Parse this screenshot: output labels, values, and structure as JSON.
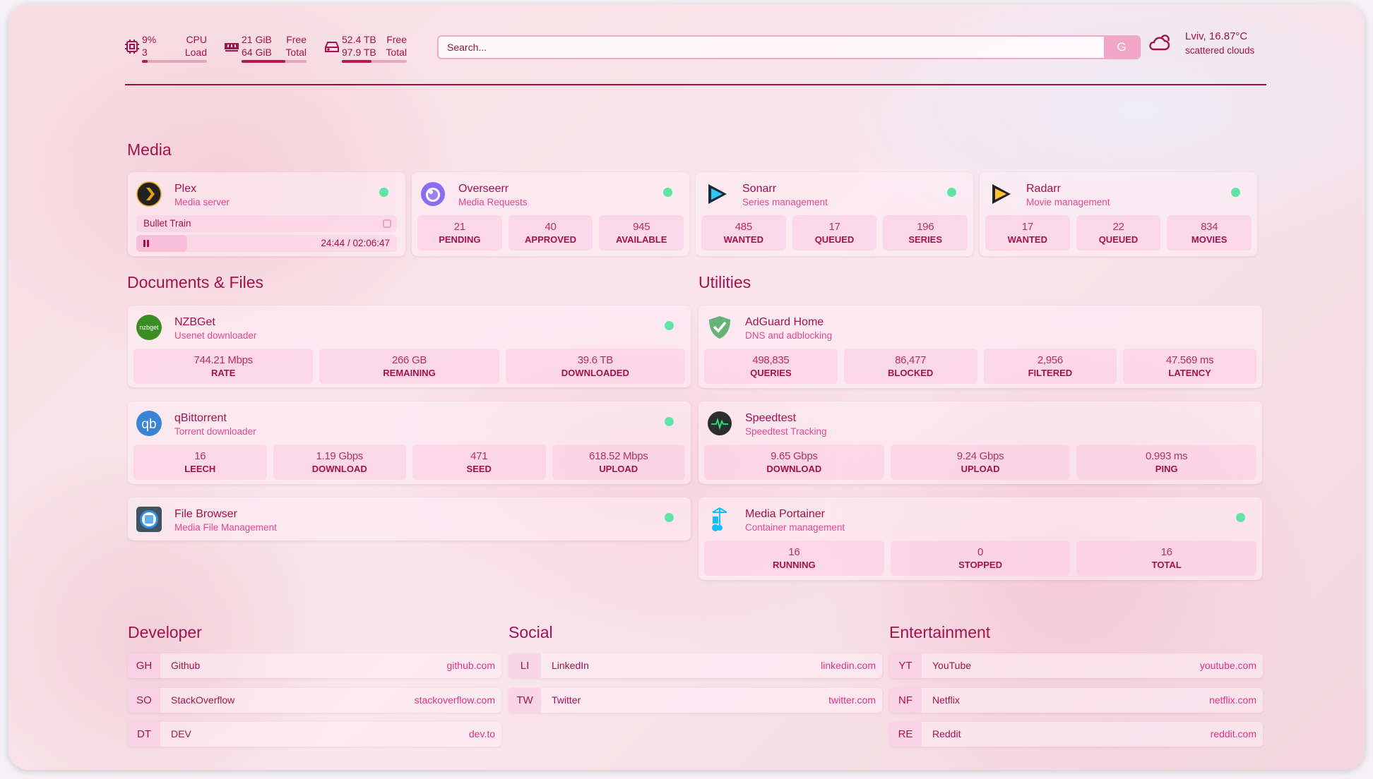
{
  "top": {
    "cpu": {
      "icon": "cpu-icon",
      "value": "9%",
      "sub": "3",
      "label1": "CPU",
      "label2": "Load",
      "fill": 0.09
    },
    "memory": {
      "icon": "memory-icon",
      "value": "21 GiB",
      "sub": "64 GiB",
      "label1": "Free",
      "label2": "Total",
      "fill": 0.67
    },
    "disk": {
      "icon": "disk-icon",
      "value": "52.4 TB",
      "sub": "97.9 TB",
      "label1": "Free",
      "label2": "Total",
      "fill": 0.46
    },
    "search": {
      "placeholder": "Search...",
      "button": "G"
    },
    "weather": {
      "icon": "cloud-icon",
      "title": "Lviv, 16.87°C",
      "desc": "scattered clouds"
    }
  },
  "colors": {
    "accent": "#a3124a",
    "subtitle": "#e54790",
    "status_ok": "#62e3a6",
    "divider": "#a0103c"
  },
  "sections": {
    "media": {
      "title": "Media",
      "cards": [
        {
          "name": "Plex",
          "desc": "Media server",
          "icon": "plex-icon",
          "status": "online",
          "now_playing": {
            "title": "Bullet Train",
            "time": "24:44 / 02:06:47",
            "progress": 0.195
          }
        },
        {
          "name": "Overseerr",
          "desc": "Media Requests",
          "icon": "overseerr-icon",
          "status": "online",
          "stats": [
            {
              "value": "21",
              "label": "PENDING"
            },
            {
              "value": "40",
              "label": "APPROVED"
            },
            {
              "value": "945",
              "label": "AVAILABLE"
            }
          ]
        },
        {
          "name": "Sonarr",
          "desc": "Series management",
          "icon": "sonarr-icon",
          "status": "online",
          "stats": [
            {
              "value": "485",
              "label": "WANTED"
            },
            {
              "value": "17",
              "label": "QUEUED"
            },
            {
              "value": "196",
              "label": "SERIES"
            }
          ]
        },
        {
          "name": "Radarr",
          "desc": "Movie management",
          "icon": "radarr-icon",
          "status": "online",
          "stats": [
            {
              "value": "17",
              "label": "WANTED"
            },
            {
              "value": "22",
              "label": "QUEUED"
            },
            {
              "value": "834",
              "label": "MOVIES"
            }
          ]
        }
      ]
    },
    "docs": {
      "title": "Documents & Files",
      "cards": [
        {
          "name": "NZBGet",
          "desc": "Usenet downloader",
          "icon": "nzbget-icon",
          "status": "online",
          "stats": [
            {
              "value": "744.21 Mbps",
              "label": "RATE"
            },
            {
              "value": "266 GB",
              "label": "REMAINING"
            },
            {
              "value": "39.6 TB",
              "label": "DOWNLOADED"
            }
          ]
        },
        {
          "name": "qBittorrent",
          "desc": "Torrent downloader",
          "icon": "qbittorrent-icon",
          "status": "online",
          "stats": [
            {
              "value": "16",
              "label": "LEECH"
            },
            {
              "value": "1.19 Gbps",
              "label": "DOWNLOAD"
            },
            {
              "value": "471",
              "label": "SEED"
            },
            {
              "value": "618.52 Mbps",
              "label": "UPLOAD"
            }
          ]
        },
        {
          "name": "File Browser",
          "desc": "Media File Management",
          "icon": "filebrowser-icon",
          "status": "online"
        }
      ]
    },
    "utilities": {
      "title": "Utilities",
      "cards": [
        {
          "name": "AdGuard Home",
          "desc": "DNS and adblocking",
          "icon": "adguard-shield-icon",
          "stats": [
            {
              "value": "498,835",
              "label": "QUERIES"
            },
            {
              "value": "86,477",
              "label": "BLOCKED"
            },
            {
              "value": "2,956",
              "label": "FILTERED"
            },
            {
              "value": "47.569 ms",
              "label": "LATENCY"
            }
          ]
        },
        {
          "name": "Speedtest",
          "desc": "Speedtest Tracking",
          "icon": "speedtest-icon",
          "stats": [
            {
              "value": "9.65 Gbps",
              "label": "DOWNLOAD"
            },
            {
              "value": "9.24 Gbps",
              "label": "UPLOAD"
            },
            {
              "value": "0.993 ms",
              "label": "PING"
            }
          ]
        },
        {
          "name": "Media Portainer",
          "desc": "Container management",
          "icon": "portainer-icon",
          "status": "online",
          "stats": [
            {
              "value": "16",
              "label": "RUNNING"
            },
            {
              "value": "0",
              "label": "STOPPED"
            },
            {
              "value": "16",
              "label": "TOTAL"
            }
          ]
        }
      ]
    }
  },
  "bookmarks": [
    {
      "title": "Developer",
      "items": [
        {
          "abbr": "GH",
          "name": "Github",
          "url": "github.com"
        },
        {
          "abbr": "SO",
          "name": "StackOverflow",
          "url": "stackoverflow.com"
        },
        {
          "abbr": "DT",
          "name": "DEV",
          "url": "dev.to"
        }
      ]
    },
    {
      "title": "Social",
      "items": [
        {
          "abbr": "LI",
          "name": "LinkedIn",
          "url": "linkedin.com"
        },
        {
          "abbr": "TW",
          "name": "Twitter",
          "url": "twitter.com"
        }
      ]
    },
    {
      "title": "Entertainment",
      "items": [
        {
          "abbr": "YT",
          "name": "YouTube",
          "url": "youtube.com"
        },
        {
          "abbr": "NF",
          "name": "Netflix",
          "url": "netflix.com"
        },
        {
          "abbr": "RE",
          "name": "Reddit",
          "url": "reddit.com"
        }
      ]
    }
  ]
}
